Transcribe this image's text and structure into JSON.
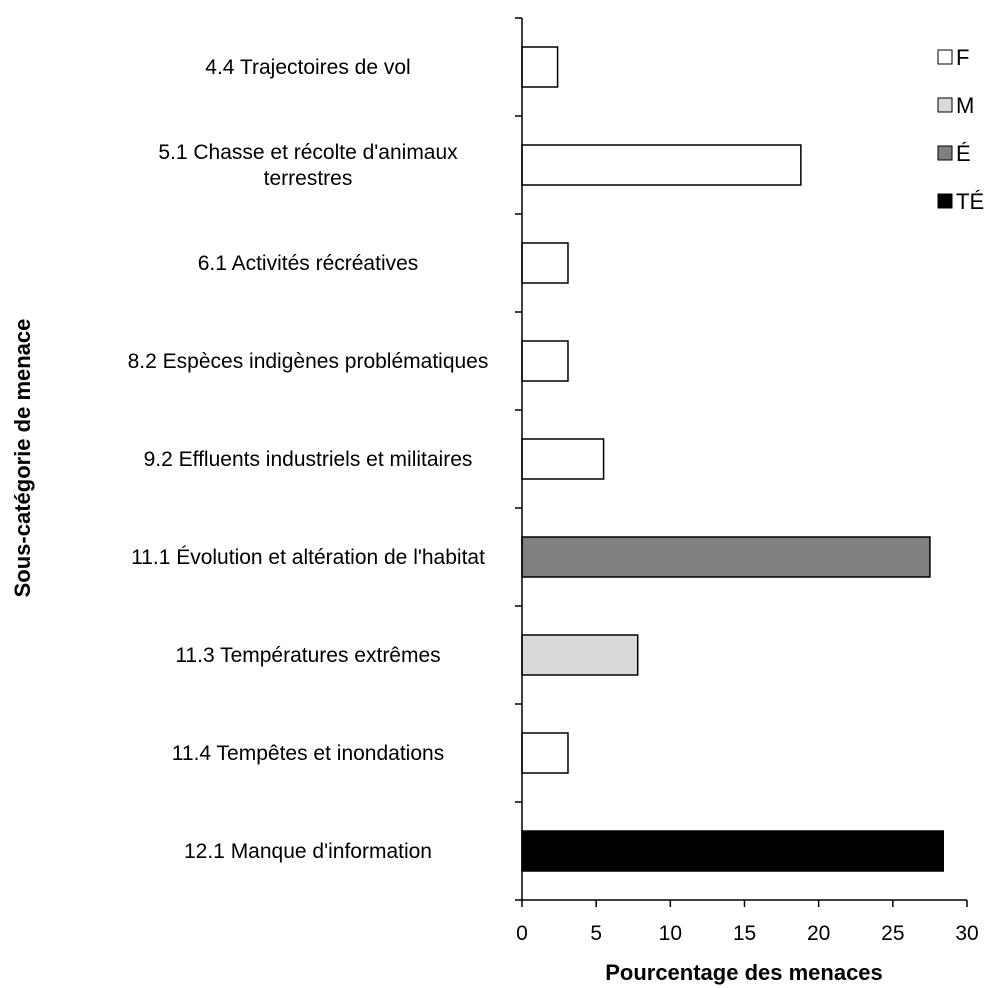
{
  "chart_data": {
    "type": "bar",
    "orientation": "horizontal",
    "xlabel": "Pourcentage des menaces",
    "ylabel": "Sous-catégorie de menace",
    "xlim": [
      0,
      30
    ],
    "xticks": [
      0,
      5,
      10,
      15,
      20,
      25,
      30
    ],
    "grid": false,
    "legend_position": "top-right",
    "categories": [
      {
        "lines": [
          "4.4 Trajectoires  de vol"
        ],
        "value": 2.4,
        "level": "F"
      },
      {
        "lines": [
          "5.1 Chasse et récolte d'animaux",
          "terrestres"
        ],
        "value": 18.8,
        "level": "F"
      },
      {
        "lines": [
          "6.1 Activités récréatives"
        ],
        "value": 3.1,
        "level": "F"
      },
      {
        "lines": [
          "8.2 Espèces indigènes problématiques"
        ],
        "value": 3.1,
        "level": "F"
      },
      {
        "lines": [
          "9.2 Effluents industriels et militaires"
        ],
        "value": 5.5,
        "level": "F"
      },
      {
        "lines": [
          "11.1 Évolution et altération de l'habitat"
        ],
        "value": 27.5,
        "level": "É"
      },
      {
        "lines": [
          "11.3 Températures  extrêmes"
        ],
        "value": 7.8,
        "level": "M"
      },
      {
        "lines": [
          "11.4 Tempêtes  et inondations"
        ],
        "value": 3.1,
        "level": "F"
      },
      {
        "lines": [
          "12.1 Manque d'information"
        ],
        "value": 28.4,
        "level": "TÉ"
      }
    ],
    "legend": [
      {
        "label": "F",
        "color": "#ffffff"
      },
      {
        "label": "M",
        "color": "#d9d9d9"
      },
      {
        "label": "É",
        "color": "#808080"
      },
      {
        "label": "TÉ",
        "color": "#000000"
      }
    ]
  }
}
